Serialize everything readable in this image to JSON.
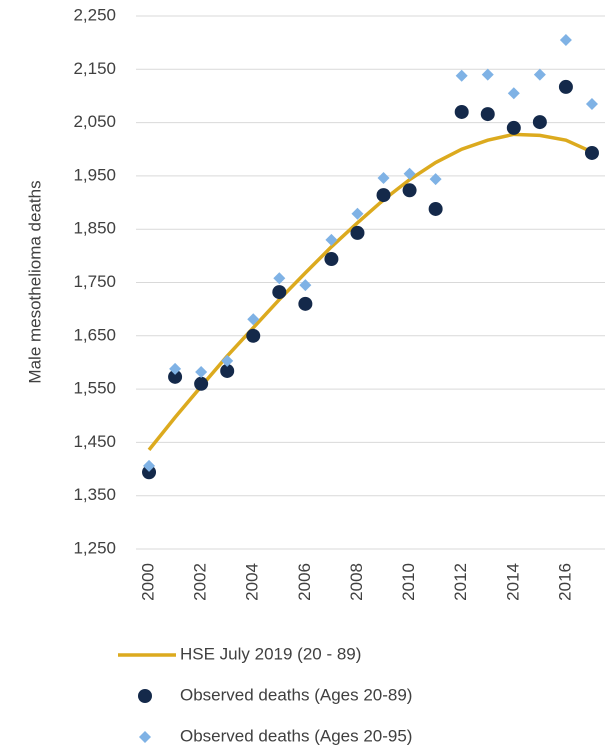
{
  "chart_data": {
    "type": "line",
    "y_label": "Male mesothelioma deaths",
    "x": [
      2000,
      2001,
      2002,
      2003,
      2004,
      2005,
      2006,
      2007,
      2008,
      2009,
      2010,
      2011,
      2012,
      2013,
      2014,
      2015,
      2016,
      2017
    ],
    "xlim": [
      1999.5,
      2017.5
    ],
    "xticks": [
      2000,
      2002,
      2004,
      2006,
      2008,
      2010,
      2012,
      2014,
      2016
    ],
    "ylim": [
      1250,
      2250
    ],
    "yticks": [
      {
        "value": 1250,
        "label": "1,250"
      },
      {
        "value": 1350,
        "label": "1,350"
      },
      {
        "value": 1450,
        "label": "1,450"
      },
      {
        "value": 1550,
        "label": "1,550"
      },
      {
        "value": 1650,
        "label": "1,650"
      },
      {
        "value": 1750,
        "label": "1,750"
      },
      {
        "value": 1850,
        "label": "1,850"
      },
      {
        "value": 1950,
        "label": "1,950"
      },
      {
        "value": 2050,
        "label": "2,050"
      },
      {
        "value": 2150,
        "label": "2,150"
      },
      {
        "value": 2250,
        "label": "2,250"
      }
    ],
    "grid": true,
    "legend": "bottom",
    "series": [
      {
        "name": "HSE July 2019 (20 - 89)",
        "type": "line",
        "color": "#dcaa1e",
        "values": [
          1436,
          1497,
          1555,
          1612,
          1665,
          1718,
          1768,
          1817,
          1862,
          1905,
          1943,
          1975,
          2000,
          2017,
          2028,
          2026,
          2017,
          1995
        ]
      },
      {
        "name": "Observed deaths (Ages 20-89)",
        "type": "scatter",
        "marker": "circle",
        "color": "#14294a",
        "values": [
          1394,
          1573,
          1560,
          1584,
          1650,
          1732,
          1710,
          1794,
          1843,
          1914,
          1923,
          1888,
          2070,
          2066,
          2040,
          2051,
          2117,
          1993
        ]
      },
      {
        "name": "Observed deaths (Ages 20-95)",
        "type": "scatter",
        "marker": "diamond",
        "color": "#7fb2e5",
        "values": [
          1406,
          1588,
          1582,
          1603,
          1681,
          1758,
          1745,
          1830,
          1879,
          1946,
          1954,
          1944,
          2138,
          2140,
          2105,
          2140,
          2205,
          2085
        ]
      }
    ]
  }
}
